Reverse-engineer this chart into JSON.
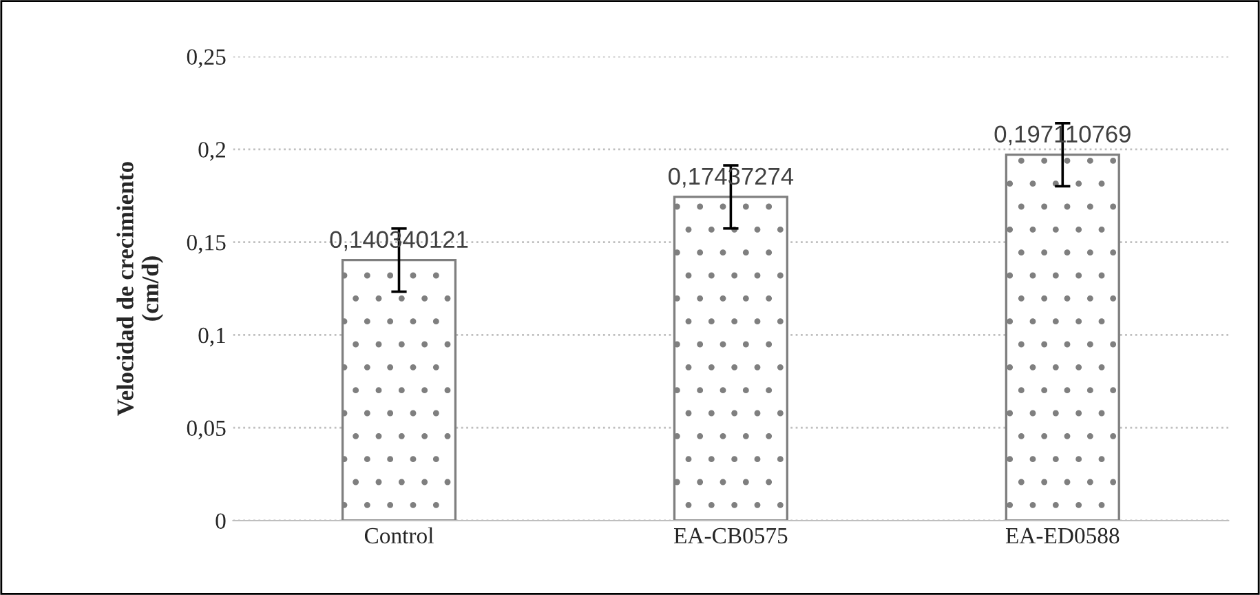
{
  "chart_data": {
    "type": "bar",
    "ylabel": "Velocidad de crecimiento\n(cm/d)",
    "categories": [
      "Control",
      "EA-CB0575",
      "EA-ED0588"
    ],
    "values": [
      0.140340121,
      0.17437274,
      0.197110769
    ],
    "value_labels": [
      "0,140340121",
      "0,17437274",
      "0,197110769"
    ],
    "errors": [
      0.017,
      0.017,
      0.017
    ],
    "color": "#7f7f7f",
    "ylim": [
      0,
      0.25
    ],
    "yticks": [
      0,
      {
        "value": 0.05,
        "label": "0,05"
      },
      {
        "value": 0.1,
        "label": "0,1"
      },
      {
        "value": 0.15,
        "label": "0,15"
      },
      {
        "value": 0.2,
        "label": "0,2"
      },
      {
        "value": 0.25,
        "label": "0,25"
      }
    ],
    "grid": "y"
  }
}
